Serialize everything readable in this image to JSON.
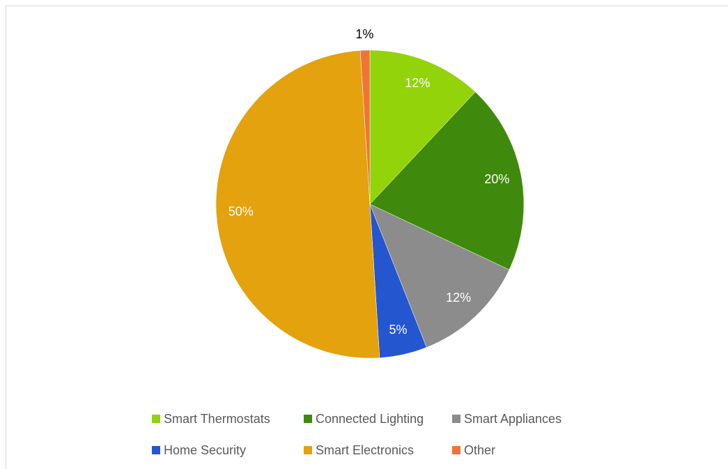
{
  "chart_data": {
    "type": "pie",
    "categories": [
      "Smart Thermostats",
      "Connected Lighting",
      "Smart Appliances",
      "Home Security",
      "Smart Electronics",
      "Other"
    ],
    "values": [
      12,
      20,
      12,
      5,
      50,
      1
    ],
    "value_labels": [
      "12%",
      "20%",
      "12%",
      "5%",
      "50%",
      "1%"
    ],
    "colors": [
      "#92d30a",
      "#3f8a0c",
      "#8c8c8c",
      "#2456cf",
      "#e3a20e",
      "#f0733a"
    ],
    "legend": "bottom"
  }
}
